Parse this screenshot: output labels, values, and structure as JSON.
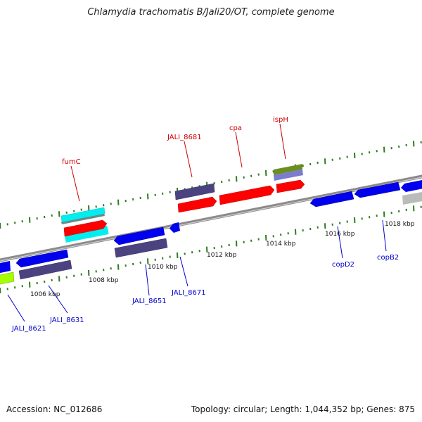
{
  "title": "Chlamydia trachomatis B/Jali20/OT, complete genome",
  "footer": {
    "accession": "Accession: NC_012686",
    "topology": "Topology: circular; Length: 1,044,352 bp; Genes: 875"
  },
  "colors": {
    "background": "#ffffff",
    "backbone": "#888888",
    "tick": "#2e7d1e",
    "label_top": "#cc0000",
    "label_bottom": "#0000cc",
    "red": "#ff0000",
    "blue": "#0000ee",
    "slate": "#4b4380",
    "cyan": "#00eeee",
    "olive": "#6b8e23",
    "lavender": "#7b7bcf",
    "lime": "#a6ff00",
    "gray": "#bbbbbb"
  },
  "kbp_labels": [
    "1006 kbp",
    "1008 kbp",
    "1010 kbp",
    "1012 kbp",
    "1014 kbp",
    "1016 kbp",
    "1018 kbp"
  ],
  "gene_labels_top": [
    "fumC",
    "JALI_8681",
    "cpa",
    "ispH"
  ],
  "gene_labels_bottom": [
    "JALI_8621",
    "JALI_8631",
    "JALI_8651",
    "JALI_8671",
    "copD2",
    "copB2"
  ]
}
